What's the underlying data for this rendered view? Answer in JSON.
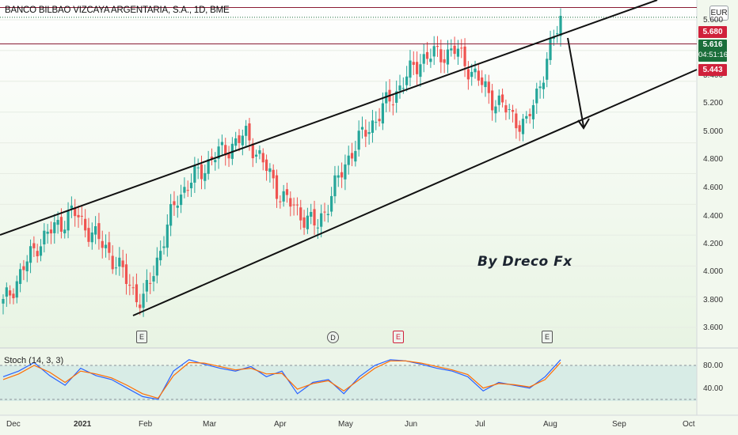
{
  "header": {
    "title": "BANCO BILBAO VIZCAYA ARGENTARIA, S.A., 1D, BME",
    "currency": "EUR"
  },
  "price_axis": {
    "ticks": [
      "5.600",
      "5.400",
      "5.200",
      "5.000",
      "4.800",
      "4.600",
      "4.400",
      "4.200",
      "4.000",
      "3.800",
      "3.600"
    ],
    "labels": {
      "resistance": "5.680",
      "last_price": "5.616",
      "countdown": "04:51:16",
      "support": "5.443"
    }
  },
  "time_axis": {
    "ticks": [
      "Dec",
      "2021",
      "Jan",
      "Feb",
      "Mar",
      "Apr",
      "May",
      "Jun",
      "Jul",
      "Aug",
      "Sep",
      "Oct"
    ]
  },
  "annotation": {
    "text": "By Dreco Fx"
  },
  "events": [
    {
      "type": "E",
      "style": "box"
    },
    {
      "type": "D",
      "style": "circle"
    },
    {
      "type": "E",
      "style": "red"
    },
    {
      "type": "E",
      "style": "box"
    }
  ],
  "oscillator": {
    "name": "Stoch (14, 3, 3)",
    "ticks": [
      "80.00",
      "40.00"
    ]
  },
  "colors": {
    "up": "#26a69a",
    "down": "#ef5350",
    "resistance_line": "#8a1b34",
    "support_line": "#8a1b34",
    "channel": "#111111",
    "k_line": "#2962ff",
    "d_line": "#ff6d00"
  },
  "chart_data": {
    "type": "candlestick",
    "title": "BANCO BILBAO VIZCAYA ARGENTARIA, S.A., 1D, BME",
    "ylim": [
      3.5,
      5.9
    ],
    "horizontal_levels": [
      5.68,
      5.443
    ],
    "last_price": 5.616,
    "close_path": [
      {
        "date": "Dec",
        "close": 3.75
      },
      {
        "date": "2021",
        "close": 4.15
      },
      {
        "date": "Jan",
        "close": 4.35
      },
      {
        "date": "Jan-mid",
        "close": 4.1
      },
      {
        "date": "Feb",
        "close": 3.75
      },
      {
        "date": "Feb-mid",
        "close": 4.45
      },
      {
        "date": "Mar",
        "close": 4.7
      },
      {
        "date": "Mar-mid",
        "close": 4.85
      },
      {
        "date": "Apr",
        "close": 4.45
      },
      {
        "date": "Apr-mid",
        "close": 4.25
      },
      {
        "date": "May",
        "close": 4.75
      },
      {
        "date": "May-mid",
        "close": 5.05
      },
      {
        "date": "Jun",
        "close": 5.35
      },
      {
        "date": "Jun-mid",
        "close": 5.4
      },
      {
        "date": "Jul",
        "close": 5.1
      },
      {
        "date": "Jul-mid",
        "close": 4.9
      },
      {
        "date": "Aug",
        "close": 5.616
      }
    ],
    "channel": {
      "upper_line": [
        {
          "date": "Dec",
          "price": 4.3
        },
        {
          "date": "Aug",
          "price": 5.68
        }
      ],
      "lower_line": [
        {
          "date": "Feb",
          "price": 3.7
        },
        {
          "date": "Aug",
          "price": 5.05
        }
      ]
    },
    "projection_arrow": {
      "from": 5.68,
      "to": 5.05
    },
    "stochastic": {
      "k": [
        60,
        70,
        85,
        62,
        45,
        75,
        62,
        55,
        40,
        25,
        20,
        70,
        90,
        82,
        75,
        70,
        78,
        60,
        70,
        30,
        50,
        55,
        30,
        60,
        80,
        90,
        88,
        82,
        75,
        70,
        60,
        35,
        50,
        45,
        40,
        60,
        90
      ],
      "d": [
        55,
        65,
        80,
        68,
        50,
        70,
        65,
        58,
        45,
        30,
        22,
        62,
        85,
        84,
        78,
        72,
        75,
        65,
        66,
        38,
        48,
        53,
        35,
        55,
        75,
        88,
        88,
        84,
        78,
        72,
        64,
        40,
        48,
        46,
        42,
        55,
        85
      ]
    }
  }
}
